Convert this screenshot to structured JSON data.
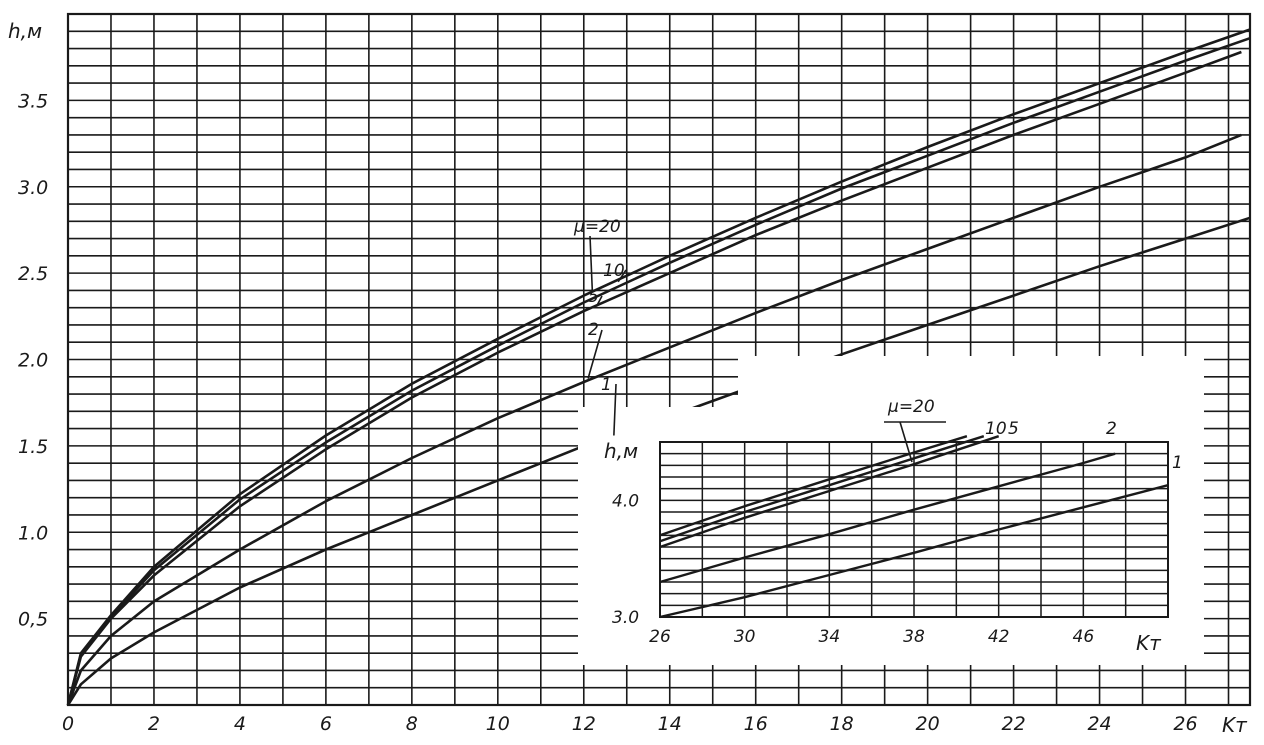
{
  "chart_data": [
    {
      "type": "line",
      "ylabel": "h,м",
      "xlabel": "Kт",
      "xlim": [
        0,
        27.5
      ],
      "ylim": [
        0,
        4.0
      ],
      "grid": true,
      "x_ticks": [
        "0",
        "2",
        "4",
        "6",
        "8",
        "10",
        "12",
        "14",
        "16",
        "18",
        "20",
        "22",
        "24",
        "26"
      ],
      "y_ticks": [
        "0,5",
        "1.0",
        "1.5",
        "2.0",
        "2.5",
        "3.0",
        "3.5"
      ],
      "series": [
        {
          "name": "μ=20",
          "x": [
            0,
            0.3,
            1,
            2,
            4,
            6,
            8,
            10,
            12,
            14,
            16,
            18,
            20,
            22,
            24,
            26,
            27.5
          ],
          "y": [
            0,
            0.3,
            0.52,
            0.8,
            1.22,
            1.56,
            1.86,
            2.12,
            2.37,
            2.6,
            2.82,
            3.03,
            3.23,
            3.42,
            3.6,
            3.78,
            3.91
          ]
        },
        {
          "name": "10",
          "x": [
            0,
            0.3,
            1,
            2,
            4,
            6,
            8,
            10,
            12,
            14,
            16,
            18,
            20,
            22,
            24,
            26,
            27.5
          ],
          "y": [
            0,
            0.29,
            0.51,
            0.78,
            1.19,
            1.52,
            1.82,
            2.08,
            2.33,
            2.56,
            2.78,
            2.99,
            3.18,
            3.37,
            3.55,
            3.73,
            3.86
          ]
        },
        {
          "name": "5",
          "x": [
            0,
            0.3,
            1,
            2,
            4,
            6,
            8,
            10,
            12,
            14,
            16,
            18,
            20,
            22,
            24,
            26,
            27.3
          ],
          "y": [
            0,
            0.28,
            0.5,
            0.75,
            1.15,
            1.48,
            1.78,
            2.04,
            2.28,
            2.5,
            2.72,
            2.92,
            3.11,
            3.3,
            3.48,
            3.66,
            3.78
          ]
        },
        {
          "name": "2",
          "x": [
            0,
            0.3,
            1,
            2,
            4,
            6,
            8,
            10,
            12,
            14,
            16,
            18,
            20,
            22,
            24,
            26,
            27.3
          ],
          "y": [
            0,
            0.2,
            0.4,
            0.6,
            0.9,
            1.18,
            1.43,
            1.66,
            1.87,
            2.07,
            2.27,
            2.46,
            2.64,
            2.82,
            3.0,
            3.17,
            3.3
          ]
        },
        {
          "name": "1",
          "x": [
            0,
            0.3,
            1,
            2,
            4,
            6,
            8,
            10,
            12,
            14,
            16,
            18,
            20,
            22,
            24,
            26,
            27.5
          ],
          "y": [
            0,
            0.12,
            0.27,
            0.42,
            0.68,
            0.9,
            1.1,
            1.3,
            1.5,
            1.67,
            1.85,
            2.03,
            2.2,
            2.37,
            2.54,
            2.7,
            2.82
          ]
        }
      ]
    },
    {
      "type": "line",
      "ylabel": "h,м",
      "xlabel": "Kт",
      "xlim": [
        26,
        50
      ],
      "ylim": [
        3.0,
        4.5
      ],
      "grid": true,
      "x_ticks": [
        "26",
        "30",
        "34",
        "38",
        "42",
        "46"
      ],
      "y_ticks": [
        "3.0",
        "4.0"
      ],
      "series": [
        {
          "name": "μ=20",
          "x": [
            26,
            30,
            34,
            38,
            40.5
          ],
          "y": [
            3.7,
            3.95,
            4.18,
            4.41,
            4.55
          ]
        },
        {
          "name": "10",
          "x": [
            26,
            30,
            34,
            38,
            41.3
          ],
          "y": [
            3.65,
            3.9,
            4.13,
            4.36,
            4.55
          ]
        },
        {
          "name": "5",
          "x": [
            26,
            30,
            34,
            38,
            42
          ],
          "y": [
            3.6,
            3.85,
            4.08,
            4.31,
            4.55
          ]
        },
        {
          "name": "2",
          "x": [
            26,
            30,
            34,
            38,
            42,
            46,
            47.5
          ],
          "y": [
            3.3,
            3.51,
            3.71,
            3.92,
            4.12,
            4.32,
            4.4
          ]
        },
        {
          "name": "1",
          "x": [
            26,
            30,
            34,
            38,
            42,
            46,
            50
          ],
          "y": [
            3.0,
            3.17,
            3.36,
            3.55,
            3.75,
            3.94,
            4.13
          ]
        }
      ]
    }
  ]
}
